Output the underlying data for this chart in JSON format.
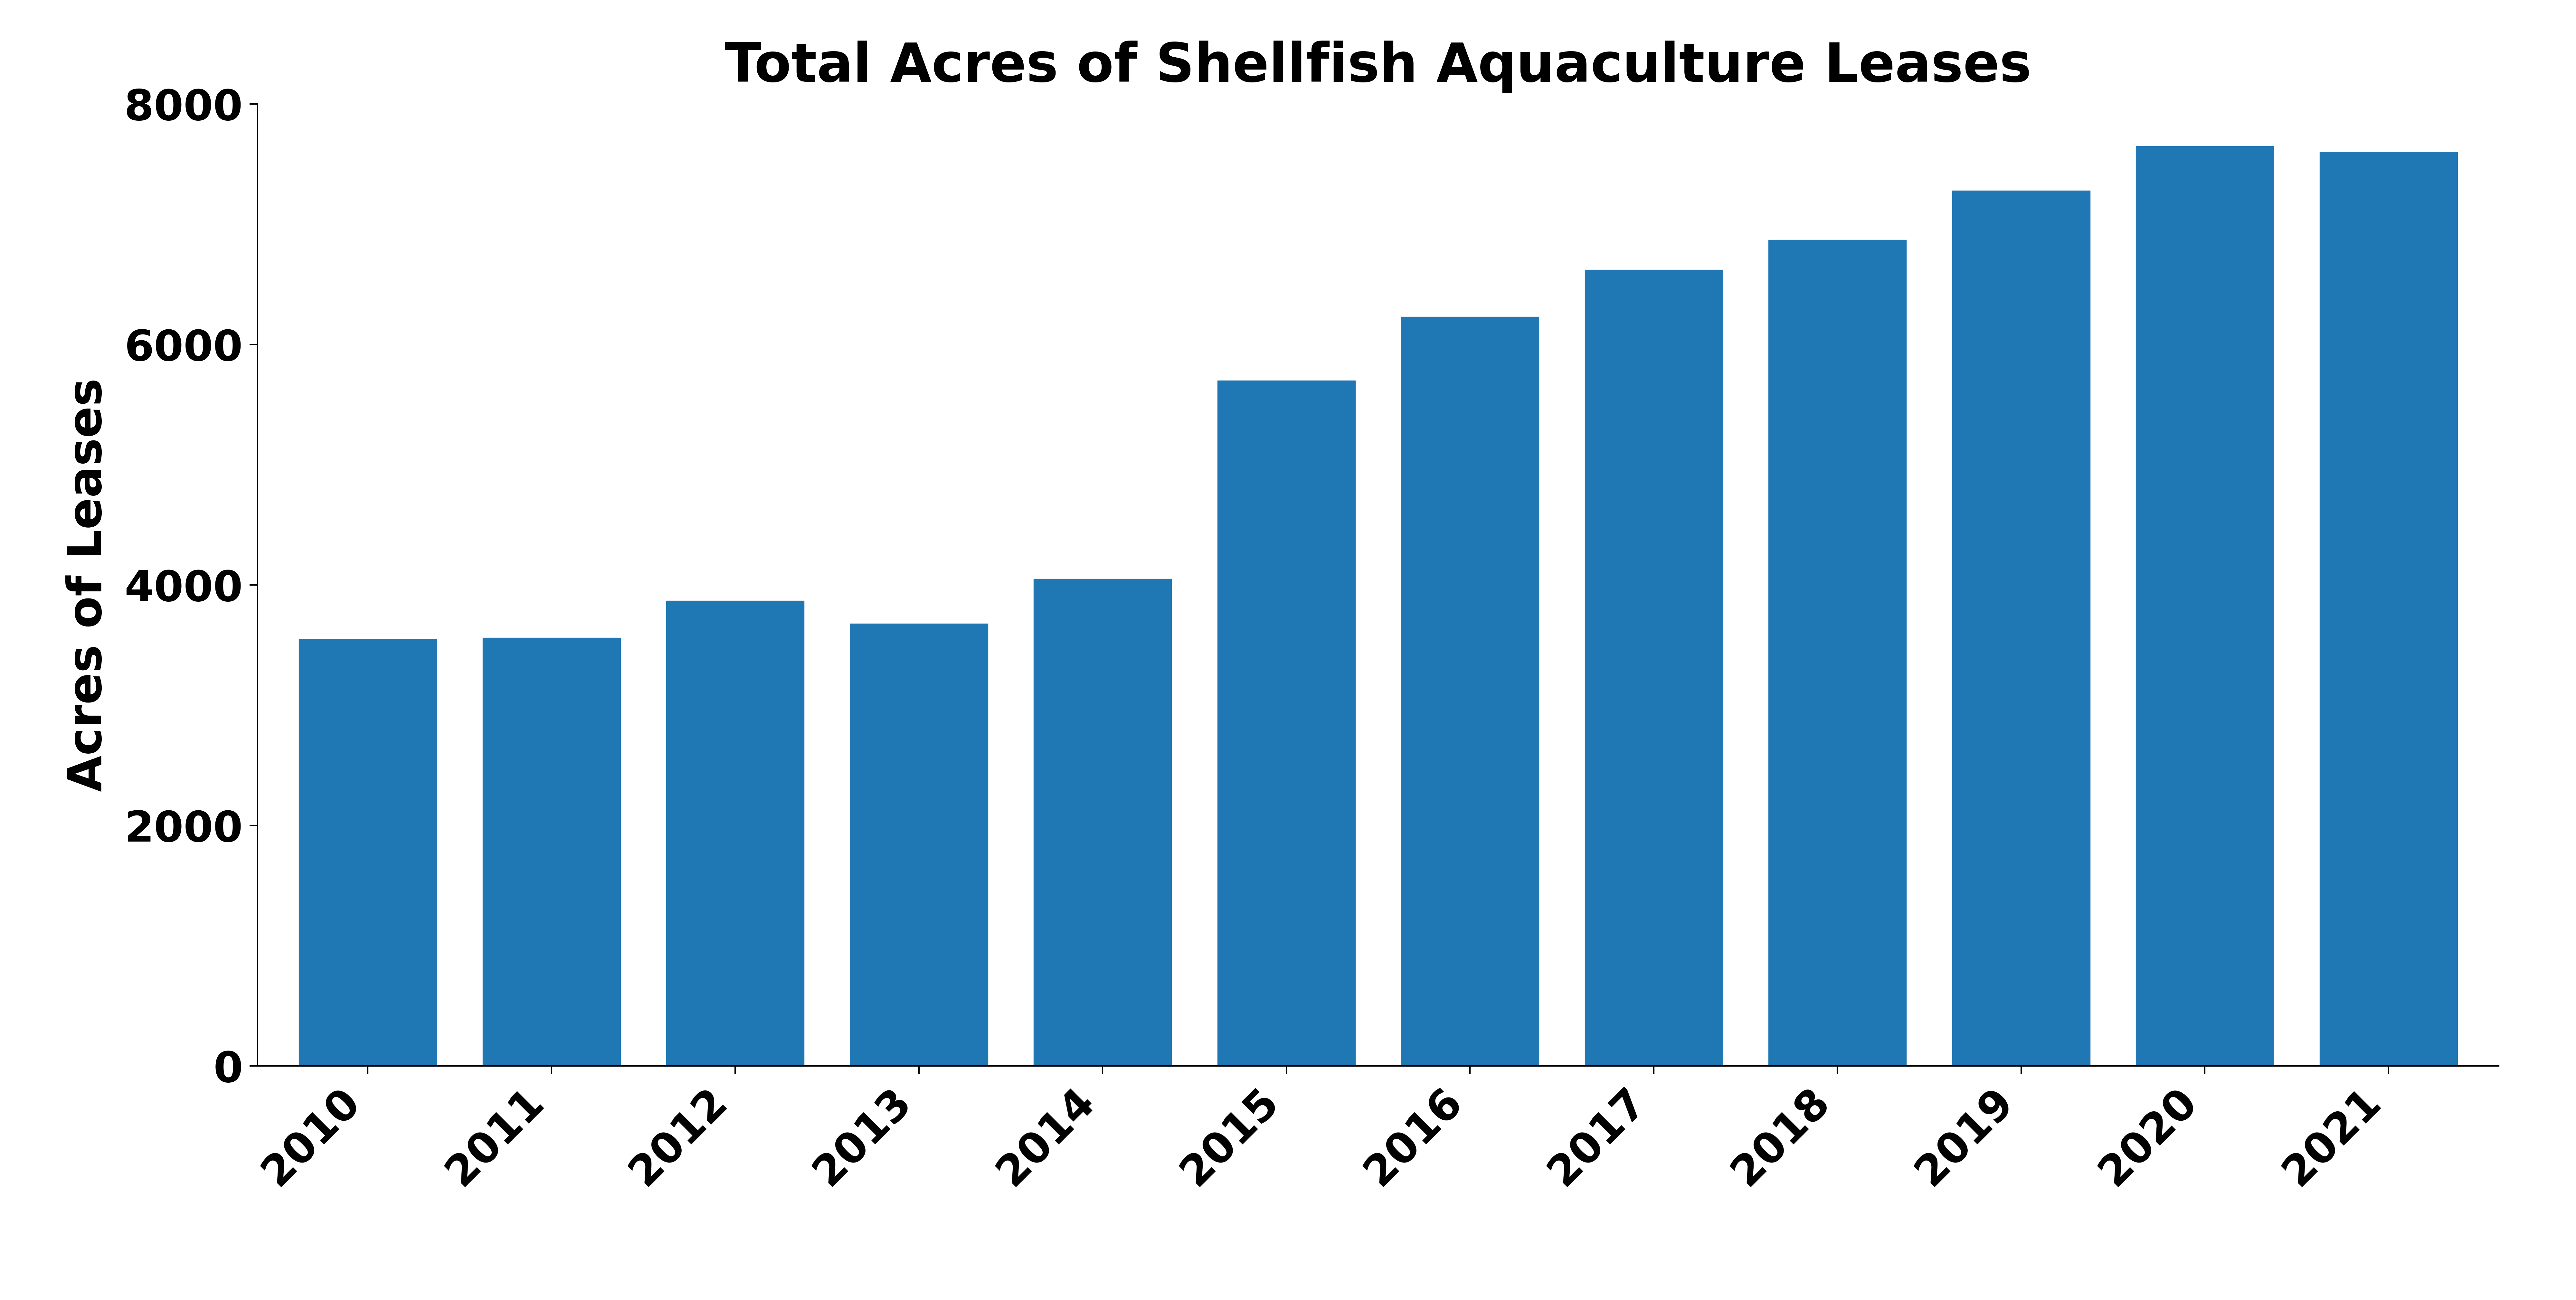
{
  "title": "Total Acres of Shellfish Aquaculture Leases",
  "ylabel": "Acres of Leases",
  "years": [
    "2010",
    "2011",
    "2012",
    "2013",
    "2014",
    "2015",
    "2016",
    "2017",
    "2018",
    "2019",
    "2020",
    "2021"
  ],
  "values": [
    3550,
    3560,
    3870,
    3680,
    4050,
    5700,
    6230,
    6620,
    6870,
    7280,
    7650,
    7600
  ],
  "bar_color": "#1f77b4",
  "background_color": "#ffffff",
  "ylim": [
    0,
    8000
  ],
  "yticks": [
    0,
    2000,
    4000,
    6000,
    8000
  ],
  "title_fontsize": 120,
  "label_fontsize": 105,
  "tick_fontsize": 95,
  "bar_width": 0.75
}
